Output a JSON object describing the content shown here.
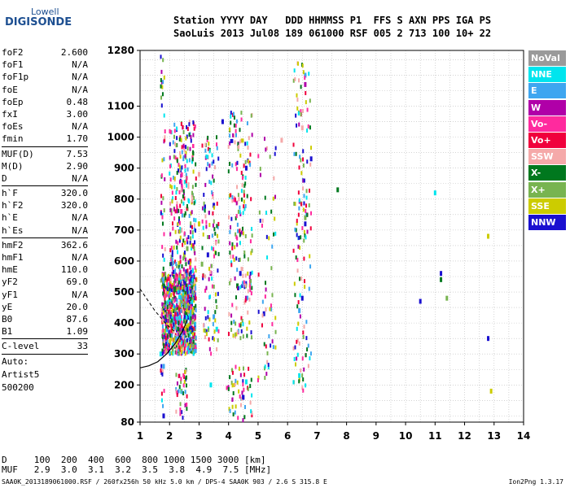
{
  "logo": {
    "line1": "Lowell",
    "line2": "DIGISONDE"
  },
  "header": {
    "labels": "Station YYYY DAY   DDD HHMMSS P1  FFS S AXN PPS IGA PS",
    "values": "SaoLuis 2013 Jul08 189 061000 RSF 005 2 713 100 10+ 22"
  },
  "params": [
    {
      "label": "foF2",
      "value": "2.600"
    },
    {
      "label": "foF1",
      "value": "N/A"
    },
    {
      "label": "foF1p",
      "value": "N/A"
    },
    {
      "label": "foE",
      "value": "N/A"
    },
    {
      "label": "foEp",
      "value": "0.48"
    },
    {
      "label": "fxI",
      "value": "3.00"
    },
    {
      "label": "foEs",
      "value": "N/A"
    },
    {
      "label": "fmin",
      "value": "1.70"
    },
    {
      "sep": true
    },
    {
      "label": "MUF(D)",
      "value": "7.53"
    },
    {
      "label": "M(D)",
      "value": "2.90"
    },
    {
      "label": "D",
      "value": "N/A"
    },
    {
      "sep": true
    },
    {
      "label": "h`F",
      "value": "320.0"
    },
    {
      "label": "h`F2",
      "value": "320.0"
    },
    {
      "label": "h`E",
      "value": "N/A"
    },
    {
      "label": "h`Es",
      "value": "N/A"
    },
    {
      "sep": true
    },
    {
      "label": "hmF2",
      "value": "362.6"
    },
    {
      "label": "hmF1",
      "value": "N/A"
    },
    {
      "label": "hmE",
      "value": "110.0"
    },
    {
      "label": "yF2",
      "value": "69.0"
    },
    {
      "label": "yF1",
      "value": "N/A"
    },
    {
      "label": "yE",
      "value": "20.0"
    },
    {
      "label": "B0",
      "value": "87.6"
    },
    {
      "label": "B1",
      "value": "1.09"
    },
    {
      "sep": true
    },
    {
      "label": "C-level",
      "value": "33"
    },
    {
      "sep": true
    },
    {
      "text": "Auto:"
    },
    {
      "text": "Artist5"
    },
    {
      "text": "500200"
    }
  ],
  "legend": [
    {
      "label": "NoVal",
      "color": "#9a9a9a"
    },
    {
      "label": "NNE",
      "color": "#00e5ee"
    },
    {
      "label": "E",
      "color": "#3ea6f0"
    },
    {
      "label": "W",
      "color": "#b000a8"
    },
    {
      "label": "Vo-",
      "color": "#ff2a9e"
    },
    {
      "label": "Vo+",
      "color": "#f0003c"
    },
    {
      "label": "SSW",
      "color": "#f5a9a9"
    },
    {
      "label": "X-",
      "color": "#00781e"
    },
    {
      "label": "X+",
      "color": "#78b450"
    },
    {
      "label": "SSE",
      "color": "#cccc00"
    },
    {
      "label": "NNW",
      "color": "#1a10d0"
    }
  ],
  "chart_data": {
    "type": "scatter",
    "x_ticks": [
      "1",
      "2",
      "3",
      "4",
      "5",
      "6",
      "7",
      "8",
      "9",
      "10",
      "11",
      "12",
      "13",
      "14"
    ],
    "y_ticks": [
      "80",
      "200",
      "300",
      "400",
      "500",
      "600",
      "700",
      "800",
      "900",
      "1000",
      "1100",
      "1280"
    ],
    "xlim": [
      1,
      14
    ],
    "ylim": [
      80,
      1280
    ],
    "grid": true,
    "series": [
      {
        "color": "#1a10d0",
        "points": [
          [
            1.8,
            340
          ],
          [
            1.9,
            380
          ],
          [
            2.0,
            420
          ],
          [
            2.1,
            460
          ],
          [
            2.3,
            500
          ],
          [
            2.5,
            540
          ],
          [
            3.3,
            620
          ],
          [
            3.5,
            780
          ],
          [
            3.8,
            1050
          ],
          [
            4.4,
            560
          ],
          [
            4.6,
            900
          ],
          [
            5.2,
            430
          ],
          [
            6.5,
            480
          ],
          [
            6.6,
            720
          ],
          [
            6.8,
            930
          ],
          [
            10.5,
            470
          ],
          [
            11.2,
            560
          ],
          [
            12.8,
            350
          ],
          [
            1.8,
            100
          ],
          [
            4.5,
            160
          ]
        ]
      },
      {
        "color": "#f0003c",
        "points": [
          [
            1.9,
            330
          ],
          [
            2.0,
            360
          ],
          [
            2.1,
            390
          ],
          [
            2.2,
            420
          ],
          [
            2.3,
            450
          ],
          [
            2.4,
            480
          ],
          [
            2.5,
            510
          ],
          [
            2.6,
            560
          ],
          [
            2.7,
            600
          ]
        ]
      },
      {
        "color": "#b000a8",
        "points": [
          [
            1.9,
            350
          ],
          [
            2.0,
            400
          ],
          [
            2.2,
            440
          ],
          [
            2.4,
            470
          ],
          [
            2.6,
            520
          ],
          [
            2.8,
            650
          ],
          [
            3.4,
            560
          ],
          [
            4.6,
            480
          ],
          [
            6.6,
            1170
          ]
        ]
      },
      {
        "color": "#ff2a9e",
        "points": [
          [
            2.0,
            370
          ],
          [
            2.3,
            430
          ],
          [
            2.5,
            490
          ],
          [
            2.7,
            580
          ],
          [
            2.4,
            760
          ]
        ]
      },
      {
        "color": "#00e5ee",
        "points": [
          [
            1.7,
            300
          ],
          [
            2.4,
            180
          ],
          [
            3.4,
            200
          ],
          [
            3.6,
            380
          ],
          [
            4.6,
            210
          ],
          [
            6.4,
            230
          ],
          [
            11.0,
            820
          ]
        ]
      },
      {
        "color": "#cccc00",
        "points": [
          [
            2.5,
            620
          ],
          [
            2.9,
            540
          ],
          [
            3.0,
            720
          ],
          [
            12.8,
            680
          ],
          [
            12.9,
            180
          ]
        ]
      },
      {
        "color": "#00781e",
        "points": [
          [
            2.3,
            410
          ],
          [
            4.3,
            520
          ],
          [
            7.7,
            830
          ],
          [
            11.2,
            540
          ]
        ]
      },
      {
        "color": "#78b450",
        "points": [
          [
            2.6,
            640
          ],
          [
            3.1,
            590
          ],
          [
            6.6,
            740
          ],
          [
            11.4,
            480
          ]
        ]
      },
      {
        "color": "#f5a9a9",
        "points": [
          [
            2.4,
            700
          ],
          [
            3.0,
            880
          ],
          [
            5.8,
            990
          ],
          [
            6.5,
            1030
          ]
        ]
      },
      {
        "color": "#3ea6f0",
        "points": [
          [
            1.8,
            260
          ],
          [
            3.5,
            420
          ],
          [
            6.4,
            440
          ],
          [
            6.6,
            1200
          ]
        ]
      }
    ]
  },
  "bottom": {
    "line1": "D     100  200  400  600  800 1000 1500 3000 [km]",
    "line2": "MUF   2.9  3.0  3.1  3.2  3.5  3.8  4.9  7.5 [MHz]",
    "footer_left": "SAA0K_2013189061000.RSF / 260fx256h 50 kHz 5.0 km / DPS-4 SAA0K 903 / 2.6 S 315.8 E",
    "footer_right": "Ion2Png 1.3.17"
  }
}
